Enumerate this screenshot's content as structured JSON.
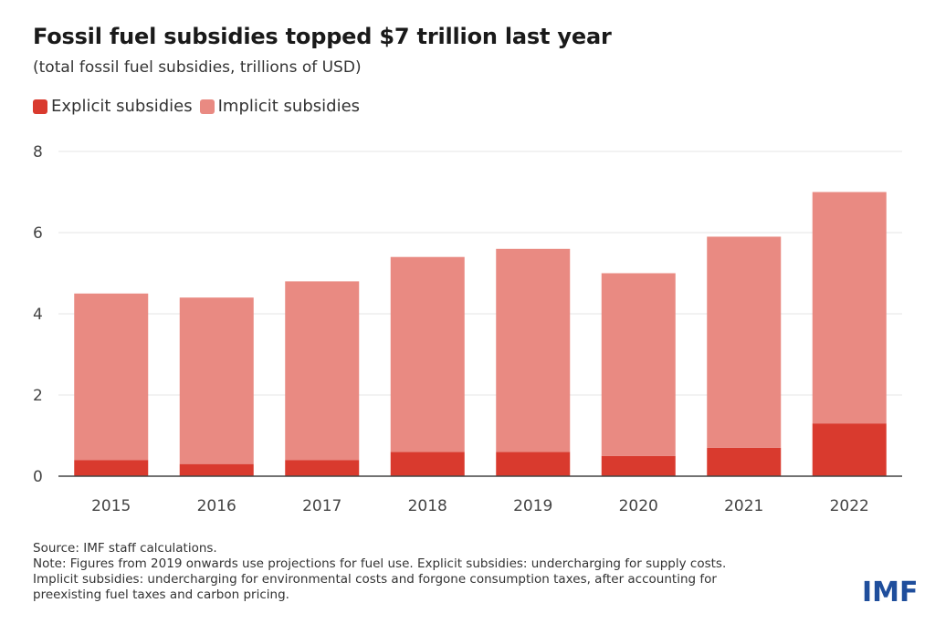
{
  "header": {
    "title": "Fossil fuel subsidies topped $7 trillion last year",
    "subtitle": "(total fossil fuel subsidies, trillions of USD)"
  },
  "colors": {
    "explicit": "#d93a2e",
    "implicit": "#e98a82",
    "grid": "#e4e4e4",
    "axis": "#444444",
    "tick_text": "#444444",
    "logo": "#1f4e9c"
  },
  "chart_data": {
    "type": "bar",
    "stacked": true,
    "categories": [
      "2015",
      "2016",
      "2017",
      "2018",
      "2019",
      "2020",
      "2021",
      "2022"
    ],
    "series": [
      {
        "name": "Explicit subsidies",
        "color": "#d93a2e",
        "values": [
          0.4,
          0.3,
          0.4,
          0.6,
          0.6,
          0.5,
          0.7,
          1.3
        ]
      },
      {
        "name": "Implicit subsidies",
        "color": "#e98a82",
        "values": [
          4.1,
          4.1,
          4.4,
          4.8,
          5.0,
          4.5,
          5.2,
          5.7
        ]
      }
    ],
    "title": "Fossil fuel subsidies topped $7 trillion last year",
    "subtitle": "(total fossil fuel subsidies, trillions of USD)",
    "ylim": [
      0,
      8
    ],
    "yticks": [
      "0",
      "2",
      "4",
      "6",
      "8"
    ],
    "grid": true,
    "legend_position": "top-left"
  },
  "notes": {
    "source": "Source: IMF staff calculations.",
    "note_line1": "Note: Figures from 2019 onwards use projections for fuel use. Explicit subsidies: undercharging for supply costs.",
    "note_line2": "Implicit subsidies: undercharging for environmental costs and forgone consumption taxes, after accounting for",
    "note_line3": "preexisting fuel taxes and carbon pricing."
  },
  "logo": {
    "text": "IMF"
  }
}
